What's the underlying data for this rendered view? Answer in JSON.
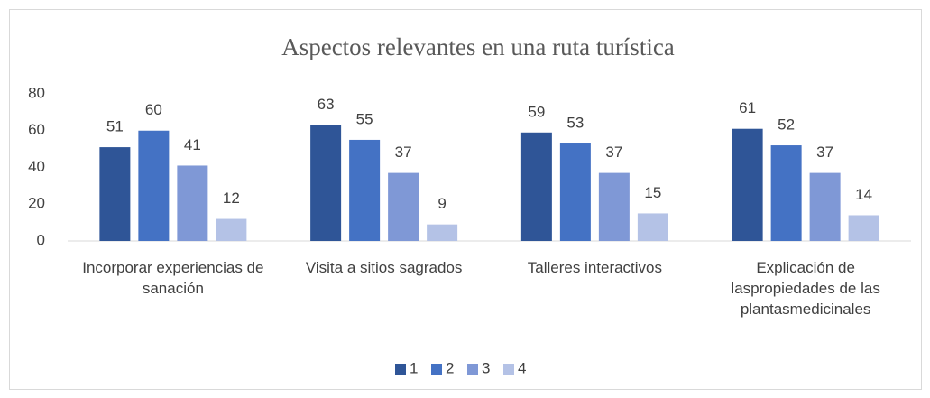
{
  "chart_data": {
    "type": "bar",
    "title": "Aspectos relevantes en una ruta turística",
    "categories": [
      "Incorporar experiencias de sanación",
      "Visita a sitios sagrados",
      "Talleres interactivos",
      "Explicación de laspropiedades de las plantasmedicinales"
    ],
    "series": [
      {
        "name": "1",
        "color": "#2f5597",
        "values": [
          51,
          63,
          59,
          61
        ]
      },
      {
        "name": "2",
        "color": "#4472c4",
        "values": [
          60,
          55,
          53,
          52
        ]
      },
      {
        "name": "3",
        "color": "#7f98d6",
        "values": [
          41,
          37,
          37,
          37
        ]
      },
      {
        "name": "4",
        "color": "#b4c2e6",
        "values": [
          12,
          9,
          15,
          14
        ]
      }
    ],
    "ylim": [
      0,
      80
    ],
    "yticks": [
      0,
      20,
      40,
      60,
      80
    ],
    "grid": false,
    "legend": "bottom"
  }
}
